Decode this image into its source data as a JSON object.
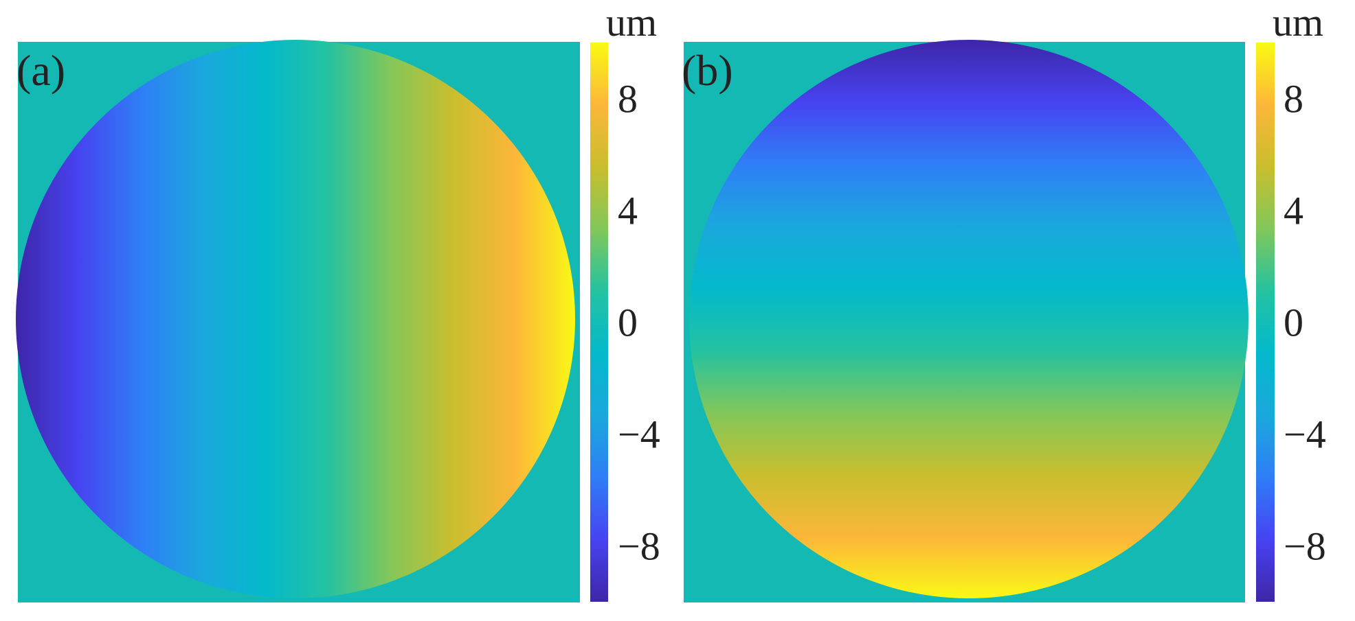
{
  "chart_data": [
    {
      "type": "heatmap",
      "panel_label": "(a)",
      "description_of_field": "tilt phase map within circular aperture, varying linearly left to right",
      "gradient_direction": "horizontal",
      "value_range": [
        -10,
        10
      ],
      "outside_aperture_value": 0,
      "colorbar": {
        "unit": "um",
        "ticks": [
          8,
          4,
          0,
          -4,
          -8
        ],
        "tick_labels": [
          "8",
          "4",
          "0",
          "−4",
          "−8"
        ],
        "range": [
          -10,
          10
        ]
      },
      "colormap": "parula"
    },
    {
      "type": "heatmap",
      "panel_label": "(b)",
      "description_of_field": "tilt phase map within circular aperture, varying linearly top to bottom",
      "gradient_direction": "vertical",
      "value_range": [
        -10,
        10
      ],
      "outside_aperture_value": 0,
      "colorbar": {
        "unit": "um",
        "ticks": [
          8,
          4,
          0,
          -4,
          -8
        ],
        "tick_labels": [
          "8",
          "4",
          "0",
          "−4",
          "−8"
        ],
        "range": [
          -10,
          10
        ]
      },
      "colormap": "parula"
    }
  ],
  "colors": {
    "parula_stops": [
      "#3e26a8",
      "#4743f0",
      "#2f7ef6",
      "#1aa8dc",
      "#04b9cb",
      "#24c2a1",
      "#82c75a",
      "#c9be2e",
      "#fcb63a",
      "#f9fa14"
    ],
    "background": "#14b9b3"
  }
}
